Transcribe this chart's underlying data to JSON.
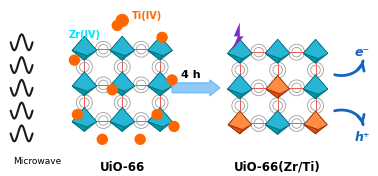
{
  "bg_color": "#ffffff",
  "fig_width": 3.78,
  "fig_height": 1.76,
  "dpi": 100,
  "microwave_label": "Microwave",
  "arrow_label": "4 h",
  "left_label": "UiO-66",
  "right_label": "UiO-66(Zr/Ti)",
  "zr_label": "Zr(IV)",
  "ti_label": "Ti(IV)",
  "e_label": "e⁻",
  "h_label": "h⁺",
  "teal_light": "#29B6D4",
  "teal_mid": "#0097A7",
  "teal_dark": "#006978",
  "orange_light": "#FF8C42",
  "orange_mid": "#E64A19",
  "orange_dark": "#8D2E00",
  "bond_red": "#EF5350",
  "ring_gray": "#9E9E9E",
  "ring_light": "#BDBDBD",
  "connector": "#90A4AE",
  "wave_color": "#1a1a1a",
  "arrow_fill": "#90CAF9",
  "arrow_border": "#64B5F6",
  "curve_color": "#1565C0",
  "lightning_color": "#7B2FBE",
  "zr_label_color": "#00E5FF",
  "ti_label_color": "#FF6600",
  "dot_orange": "#FF6600"
}
